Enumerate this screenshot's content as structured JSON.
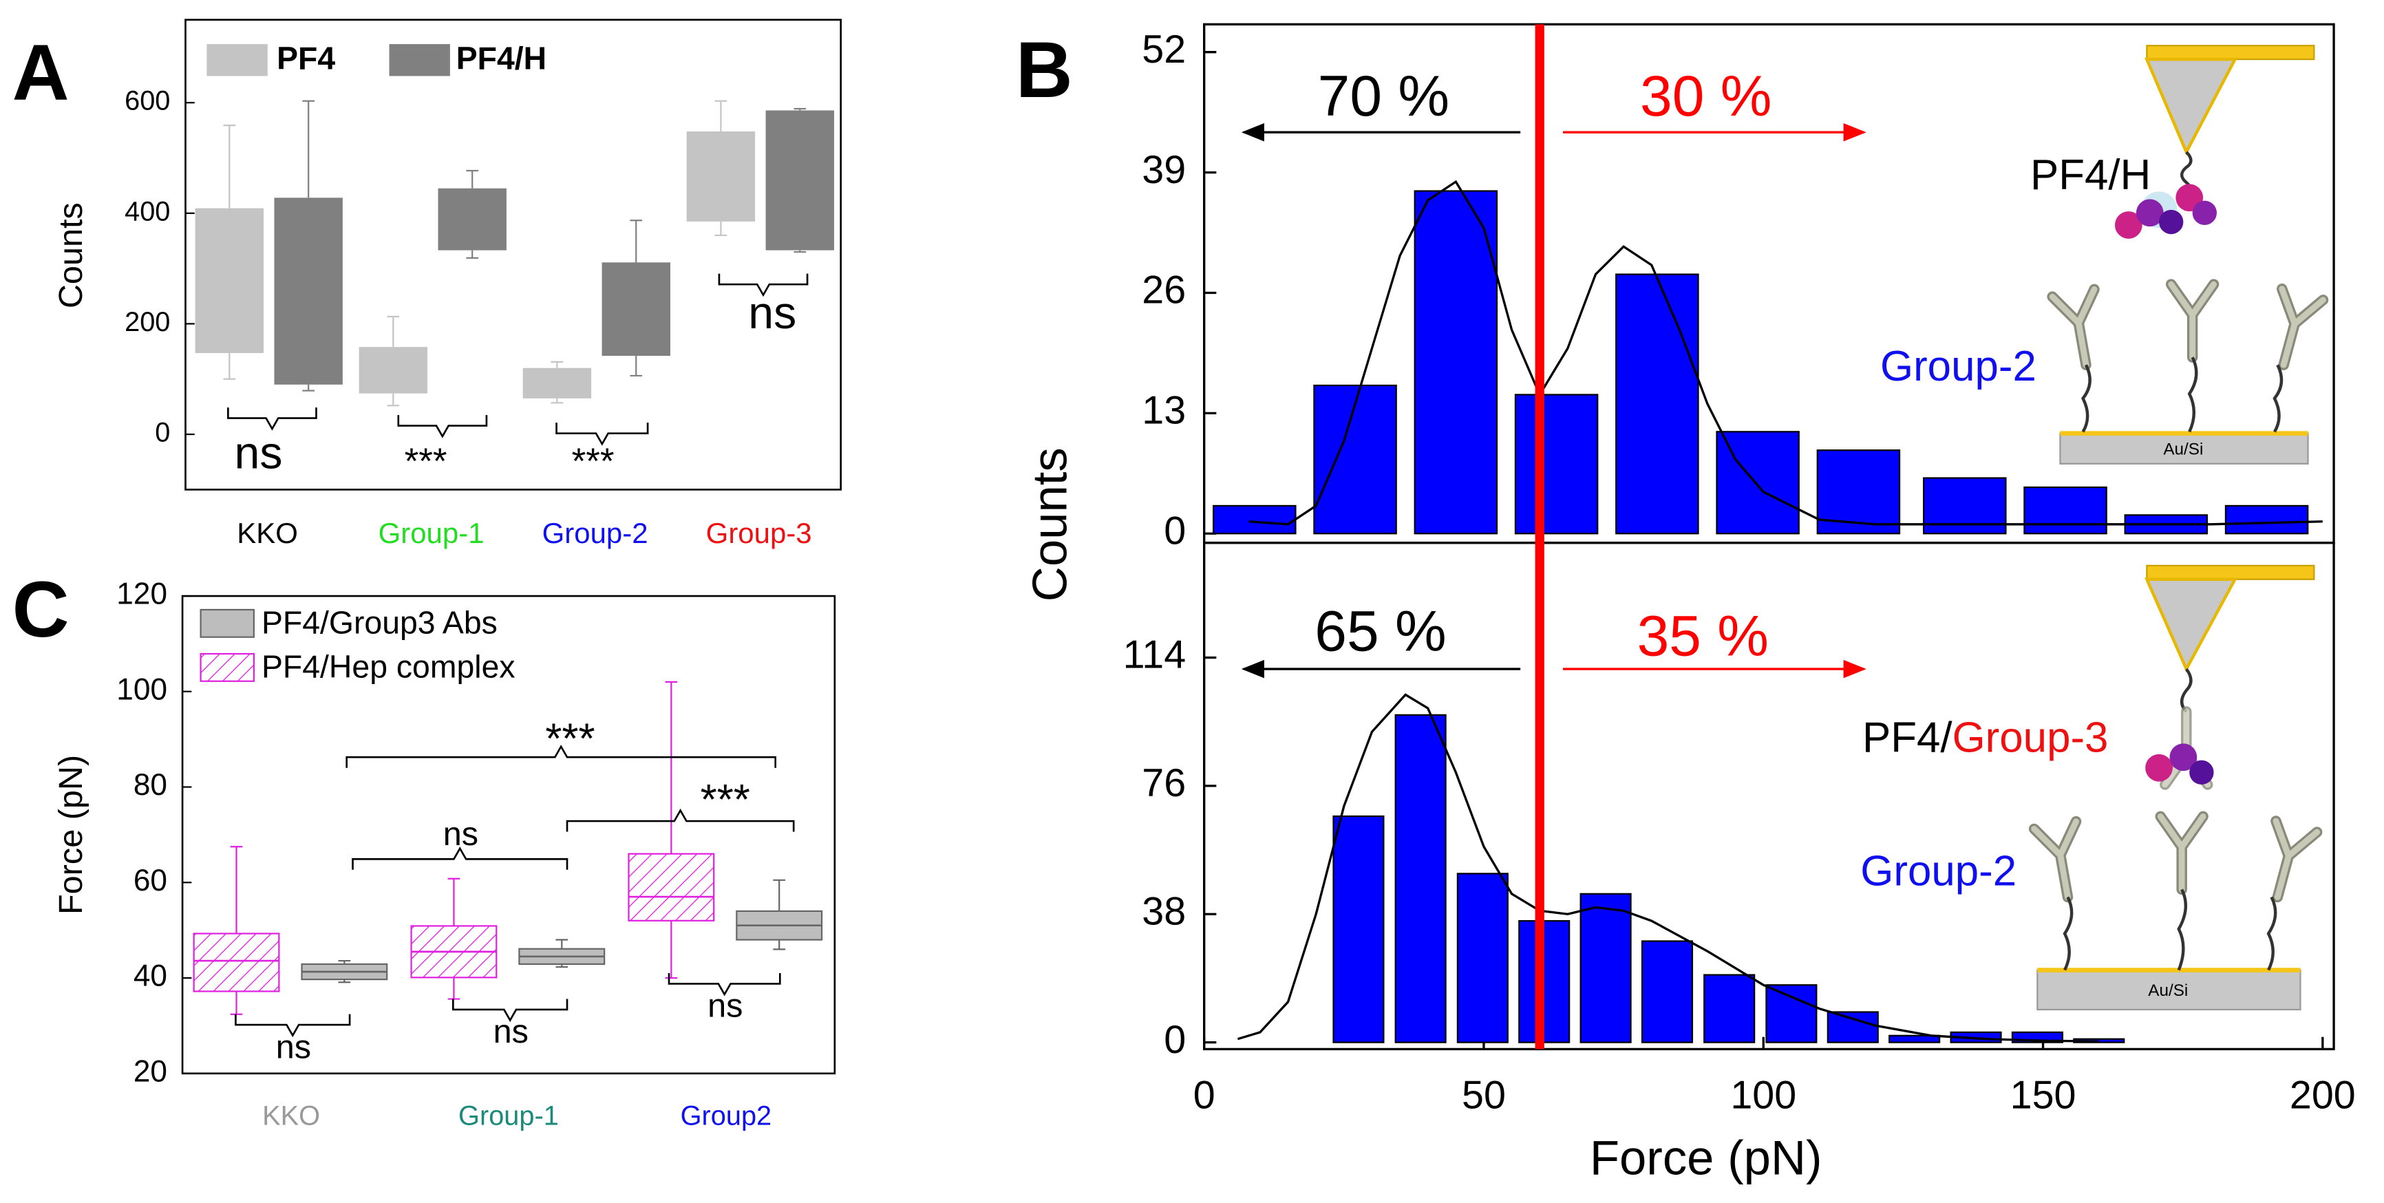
{
  "chart_data": [
    {
      "type": "box",
      "panel_label": "A",
      "ylabel": "Counts",
      "categories": [
        "KKO",
        "Group-1",
        "Group-2",
        "Group-3"
      ],
      "category_colors": [
        "#000000",
        "#22dd22",
        "#1010ee",
        "#ee1111"
      ],
      "ylim": [
        -100,
        750
      ],
      "yticks": [
        0,
        200,
        400,
        600
      ],
      "series": [
        {
          "name": "PF4",
          "color": "#c4c4c4",
          "values": [
            {
              "low": 100,
              "q1": 147,
              "q3": 409,
              "high": 559
            },
            {
              "low": 52,
              "q1": 74,
              "q3": 158,
              "high": 213
            },
            {
              "low": 57,
              "q1": 65,
              "q3": 120,
              "high": 131
            },
            {
              "low": 360,
              "q1": 385,
              "q3": 548,
              "high": 603
            }
          ]
        },
        {
          "name": "PF4/H",
          "color": "#808080",
          "values": [
            {
              "low": 79,
              "q1": 90,
              "q3": 428,
              "high": 603
            },
            {
              "low": 319,
              "q1": 333,
              "q3": 445,
              "high": 477
            },
            {
              "low": 106,
              "q1": 142,
              "q3": 311,
              "high": 387
            },
            {
              "low": 330,
              "q1": 333,
              "q3": 586,
              "high": 589
            }
          ]
        }
      ],
      "annotations": [
        "ns",
        "***",
        "***",
        "ns"
      ]
    },
    {
      "type": "bar",
      "panel_label": "B",
      "xlabel": "Force (pN)",
      "ylabel": "Counts",
      "xlim": [
        0,
        202
      ],
      "xticks": [
        0,
        50,
        100,
        150,
        200
      ],
      "color": "#0000ff",
      "fit_color": "#000000",
      "threshold": 60,
      "threshold_color": "#ff0000",
      "panels": [
        {
          "x": [
            9,
            27,
            45,
            63,
            81,
            99,
            117,
            136,
            154,
            172,
            190
          ],
          "values": [
            3,
            16,
            37,
            15,
            28,
            11,
            9,
            6,
            5,
            2,
            3
          ],
          "ylim": [
            -1,
            55
          ],
          "yticks": [
            0,
            13,
            26,
            39,
            52
          ],
          "fit": {
            "x": [
              8,
              15,
              20,
              25,
              30,
              35,
              40,
              45,
              50,
              55,
              60,
              65,
              70,
              75,
              80,
              85,
              90,
              95,
              100,
              110,
              120,
              140,
              160,
              180,
              200
            ],
            "values": [
              1.3,
              1.0,
              3,
              10,
              20,
              30,
              36,
              38,
              33,
              22,
              15,
              20,
              28,
              31,
              29,
              22,
              14,
              8,
              4.5,
              1.5,
              1,
              1,
              1,
              1,
              1.3
            ]
          },
          "annotations": [
            "70 %",
            "30 %",
            "PF4/H",
            "Group-2",
            "Au/Si"
          ]
        },
        {
          "x": [
            27.6,
            38.7,
            49.8,
            60.8,
            71.8,
            82.8,
            93.9,
            105,
            116,
            127,
            138,
            149,
            160
          ],
          "values": [
            67,
            97,
            50,
            36,
            44,
            30,
            20,
            17,
            9,
            2,
            3,
            3,
            1
          ],
          "ylim": [
            -2,
            148
          ],
          "yticks": [
            0,
            38,
            76,
            114
          ],
          "fit": {
            "x": [
              6,
              10,
              15,
              20,
              25,
              30,
              36,
              40,
              45,
              50,
              55,
              60,
              65,
              70,
              75,
              80,
              90,
              100,
              110,
              120,
              130,
              140,
              150,
              160
            ],
            "values": [
              1,
              3,
              12,
              38,
              70,
              92,
              103,
              99,
              80,
              58,
              44,
              39,
              38,
              40,
              39,
              36,
              27,
              17,
              10,
              5,
              2,
              1,
              0.5,
              0.3
            ]
          },
          "annotations": [
            "65 %",
            "35 %",
            "PF4/",
            "Group-3",
            "Group-2",
            "Au/Si"
          ]
        }
      ]
    },
    {
      "type": "box",
      "panel_label": "C",
      "ylabel": "Force (pN)",
      "categories": [
        "KKO",
        "Group-1",
        "Group2"
      ],
      "category_colors": [
        "#999999",
        "#1a8a7a",
        "#1010ee"
      ],
      "ylim": [
        20,
        120
      ],
      "yticks": [
        20,
        40,
        60,
        80,
        100,
        120
      ],
      "series": [
        {
          "name": "PF4/Group3 Abs",
          "color": "#bdbdbd",
          "values": [
            {
              "low": 39.1,
              "q1": 39.7,
              "median": 41.3,
              "q3": 42.9,
              "high": 43.6
            },
            {
              "low": 42.3,
              "q1": 42.9,
              "median": 44.5,
              "q3": 46.1,
              "high": 48
            },
            {
              "low": 46,
              "q1": 48,
              "median": 51,
              "q3": 54,
              "high": 60.5
            }
          ]
        },
        {
          "name": "PF4/Hep complex",
          "color": "#e020e0",
          "pattern": "hatch",
          "values": [
            {
              "low": 32.4,
              "q1": 37.2,
              "median": 43.6,
              "q3": 49.3,
              "high": 67.5
            },
            {
              "low": 35.6,
              "q1": 40.1,
              "median": 45.5,
              "q3": 50.9,
              "high": 60.8
            },
            {
              "low": 40,
              "q1": 52,
              "median": 57,
              "q3": 66,
              "high": 102
            }
          ]
        }
      ],
      "annotations": [
        "***",
        "ns",
        "***",
        "ns",
        "ns",
        "ns"
      ]
    }
  ]
}
